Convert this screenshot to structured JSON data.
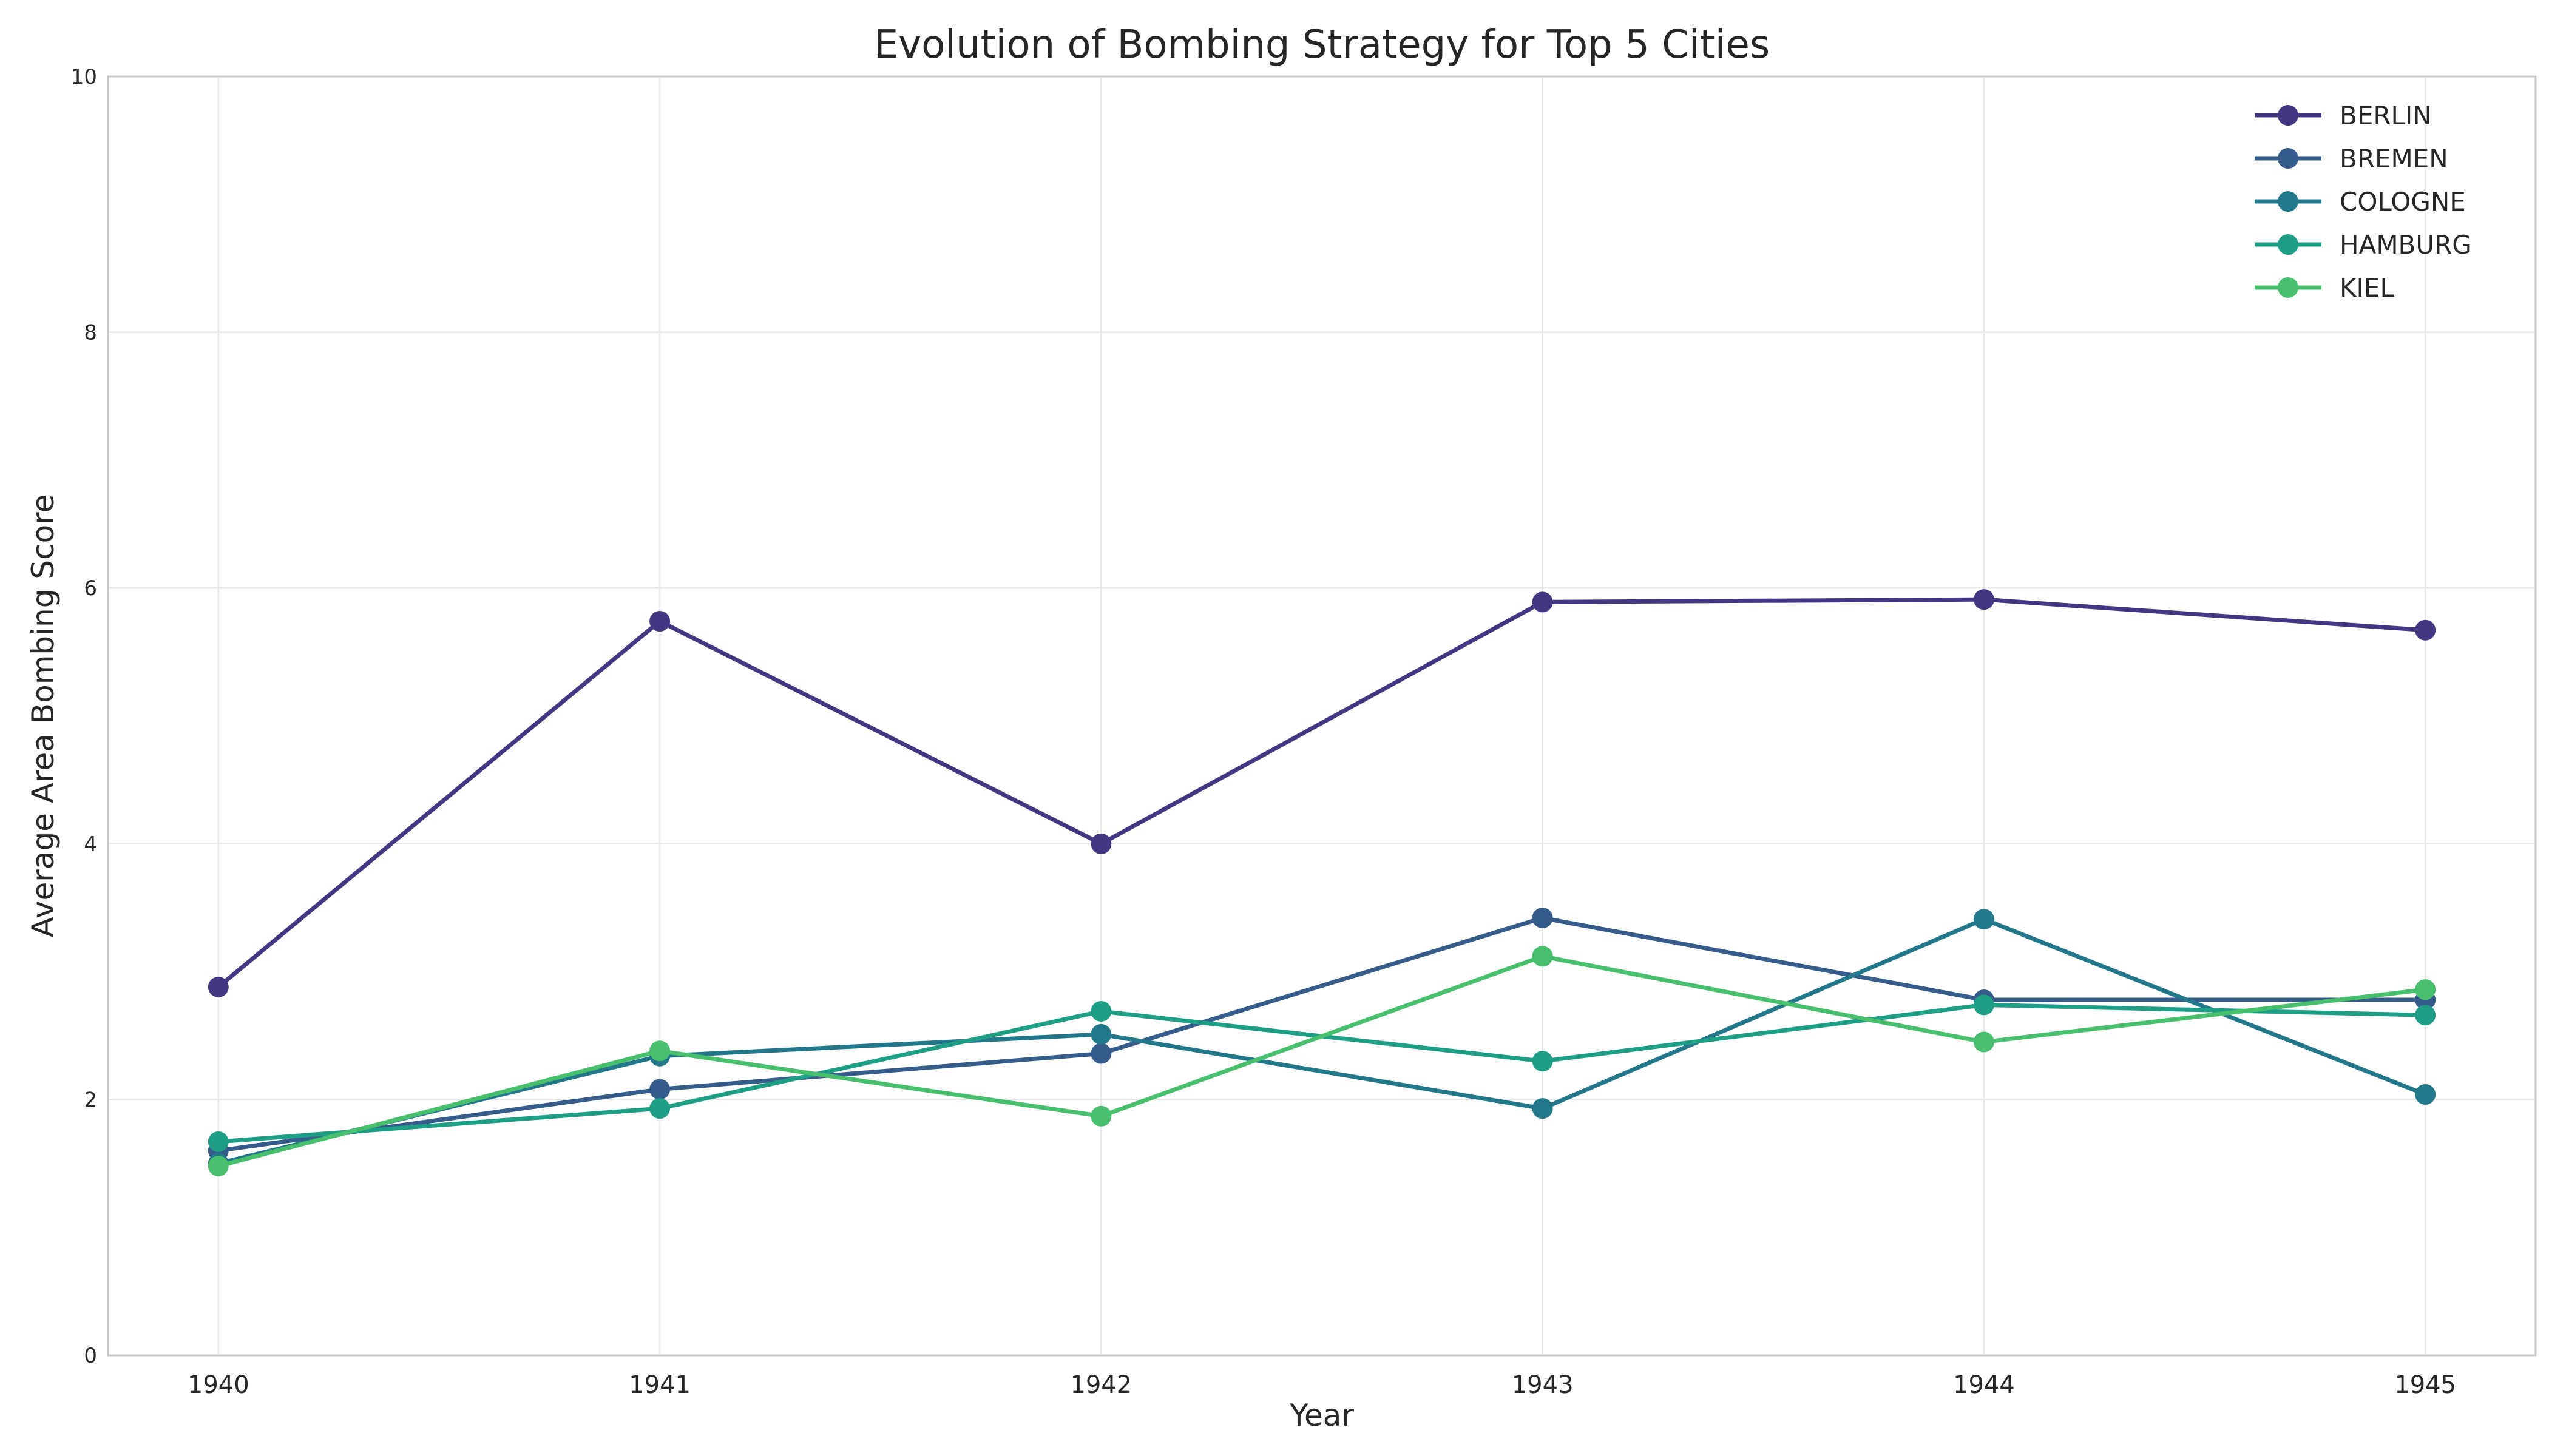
{
  "chart_data": {
    "type": "line",
    "title": "Evolution of Bombing Strategy for Top 5 Cities",
    "xlabel": "Year",
    "ylabel": "Average Area Bombing Score",
    "x": [
      1940,
      1941,
      1942,
      1943,
      1944,
      1945
    ],
    "x_tick_labels": [
      "1940",
      "1941",
      "1942",
      "1943",
      "1944",
      "1945"
    ],
    "y_ticks": [
      0,
      2,
      4,
      6,
      8,
      10
    ],
    "y_tick_labels": [
      "0",
      "2",
      "4",
      "6",
      "8",
      "10"
    ],
    "xlim": [
      1939.75,
      1945.25
    ],
    "ylim": [
      0,
      10
    ],
    "grid": true,
    "legend_position": "top-right",
    "series": [
      {
        "name": "BERLIN",
        "color": "#433683",
        "values": [
          2.88,
          5.74,
          4.0,
          5.89,
          5.91,
          5.67
        ]
      },
      {
        "name": "BREMEN",
        "color": "#355c8a",
        "values": [
          1.6,
          2.08,
          2.36,
          3.42,
          2.78,
          2.78
        ]
      },
      {
        "name": "COLOGNE",
        "color": "#22788a",
        "values": [
          1.5,
          2.34,
          2.51,
          1.93,
          3.41,
          2.04
        ]
      },
      {
        "name": "HAMBURG",
        "color": "#1f9e86",
        "values": [
          1.67,
          1.93,
          2.69,
          2.3,
          2.74,
          2.66
        ]
      },
      {
        "name": "KIEL",
        "color": "#47bf6d",
        "values": [
          1.48,
          2.38,
          1.87,
          3.12,
          2.45,
          2.86
        ]
      }
    ]
  }
}
